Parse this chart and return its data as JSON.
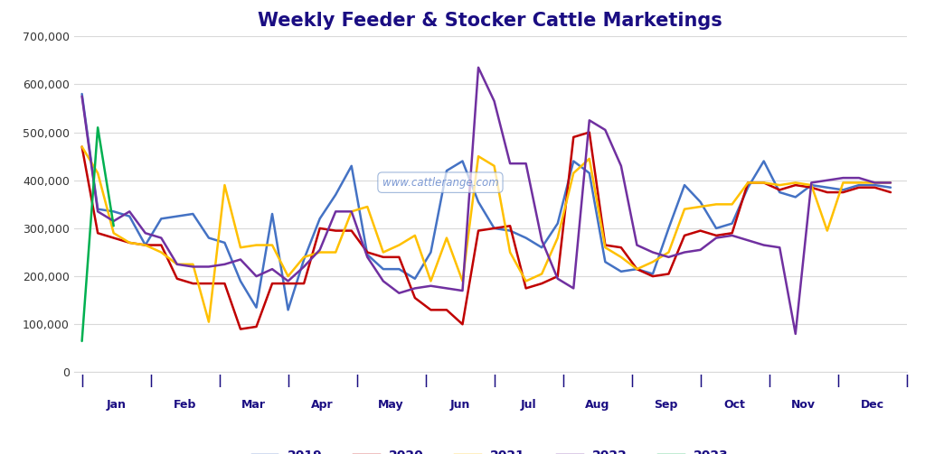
{
  "title": "Weekly Feeder & Stocker Cattle Marketings",
  "title_color": "#1a0d82",
  "background_color": "#ffffff",
  "colors": {
    "2019": "#4472c4",
    "2020": "#c00000",
    "2021": "#ffc000",
    "2022": "#7030a0",
    "2023": "#00b050"
  },
  "weekly_data": {
    "2019": [
      580000,
      340000,
      335000,
      325000,
      265000,
      320000,
      325000,
      330000,
      280000,
      270000,
      190000,
      135000,
      330000,
      130000,
      235000,
      320000,
      370000,
      430000,
      245000,
      215000,
      215000,
      195000,
      250000,
      420000,
      440000,
      355000,
      300000,
      295000,
      280000,
      260000,
      310000,
      440000,
      415000,
      230000,
      210000,
      215000,
      205000,
      300000,
      390000,
      355000,
      300000,
      310000,
      385000,
      440000,
      375000,
      365000,
      390000,
      385000,
      380000,
      390000,
      390000,
      385000
    ],
    "2020": [
      470000,
      290000,
      280000,
      270000,
      265000,
      265000,
      195000,
      185000,
      185000,
      185000,
      90000,
      95000,
      185000,
      185000,
      185000,
      300000,
      295000,
      295000,
      250000,
      240000,
      240000,
      155000,
      130000,
      130000,
      100000,
      295000,
      300000,
      305000,
      175000,
      185000,
      200000,
      490000,
      500000,
      265000,
      260000,
      215000,
      200000,
      205000,
      285000,
      295000,
      285000,
      290000,
      395000,
      395000,
      380000,
      390000,
      385000,
      375000,
      375000,
      385000,
      385000,
      375000
    ],
    "2021": [
      470000,
      415000,
      290000,
      270000,
      265000,
      250000,
      225000,
      225000,
      105000,
      390000,
      260000,
      265000,
      265000,
      200000,
      240000,
      250000,
      250000,
      335000,
      345000,
      250000,
      265000,
      285000,
      190000,
      280000,
      190000,
      450000,
      430000,
      250000,
      190000,
      205000,
      280000,
      415000,
      445000,
      260000,
      240000,
      215000,
      230000,
      250000,
      340000,
      345000,
      350000,
      350000,
      395000,
      395000,
      390000,
      395000,
      390000,
      295000,
      395000,
      395000,
      395000,
      395000
    ],
    "2022": [
      575000,
      335000,
      315000,
      335000,
      290000,
      280000,
      225000,
      220000,
      220000,
      225000,
      235000,
      200000,
      215000,
      190000,
      220000,
      255000,
      335000,
      335000,
      240000,
      190000,
      165000,
      175000,
      180000,
      175000,
      170000,
      635000,
      565000,
      435000,
      435000,
      275000,
      195000,
      175000,
      525000,
      505000,
      430000,
      265000,
      250000,
      240000,
      250000,
      255000,
      280000,
      285000,
      275000,
      265000,
      260000,
      80000,
      395000,
      400000,
      405000,
      405000,
      395000,
      395000
    ],
    "2023": [
      65000,
      510000,
      305000
    ]
  },
  "n_weeks": 52,
  "month_boundaries": [
    0,
    4.33,
    8.67,
    13.0,
    17.33,
    21.67,
    26.0,
    30.33,
    34.67,
    39.0,
    43.33,
    47.67,
    52.0
  ],
  "month_labels": [
    "Jan",
    "Feb",
    "Mar",
    "Apr",
    "May",
    "Jun",
    "Jul",
    "Aug",
    "Sep",
    "Oct",
    "Nov",
    "Dec"
  ],
  "ylim": [
    0,
    700000
  ],
  "yticks": [
    0,
    100000,
    200000,
    300000,
    400000,
    500000,
    600000,
    700000
  ],
  "grid_color": "#d9d9d9",
  "watermark": "www.cattlerange.com",
  "line_width": 1.8
}
